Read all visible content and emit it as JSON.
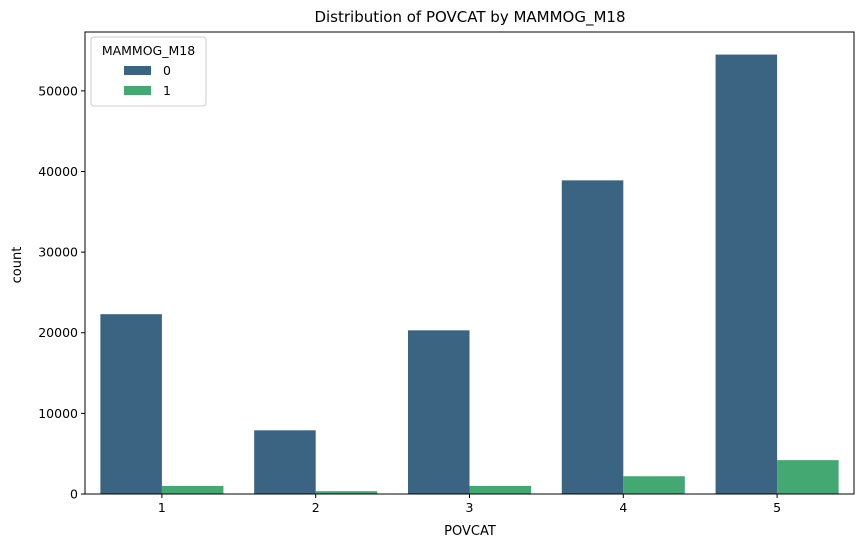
{
  "chart_data": {
    "type": "bar",
    "title": "Distribution of POVCAT by MAMMOG_M18",
    "xlabel": "POVCAT",
    "ylabel": "count",
    "categories": [
      "1",
      "2",
      "3",
      "4",
      "5"
    ],
    "ylim": [
      0,
      57300
    ],
    "yticks": [
      0,
      10000,
      20000,
      30000,
      40000,
      50000
    ],
    "grid": false,
    "legend": {
      "title": "MAMMOG_M18",
      "position": "top-left"
    },
    "series": [
      {
        "name": "0",
        "color": "#3b6382",
        "values": [
          22300,
          7900,
          20300,
          38900,
          54500
        ]
      },
      {
        "name": "1",
        "color": "#43a872",
        "values": [
          1000,
          350,
          1000,
          2200,
          4200
        ]
      }
    ]
  }
}
